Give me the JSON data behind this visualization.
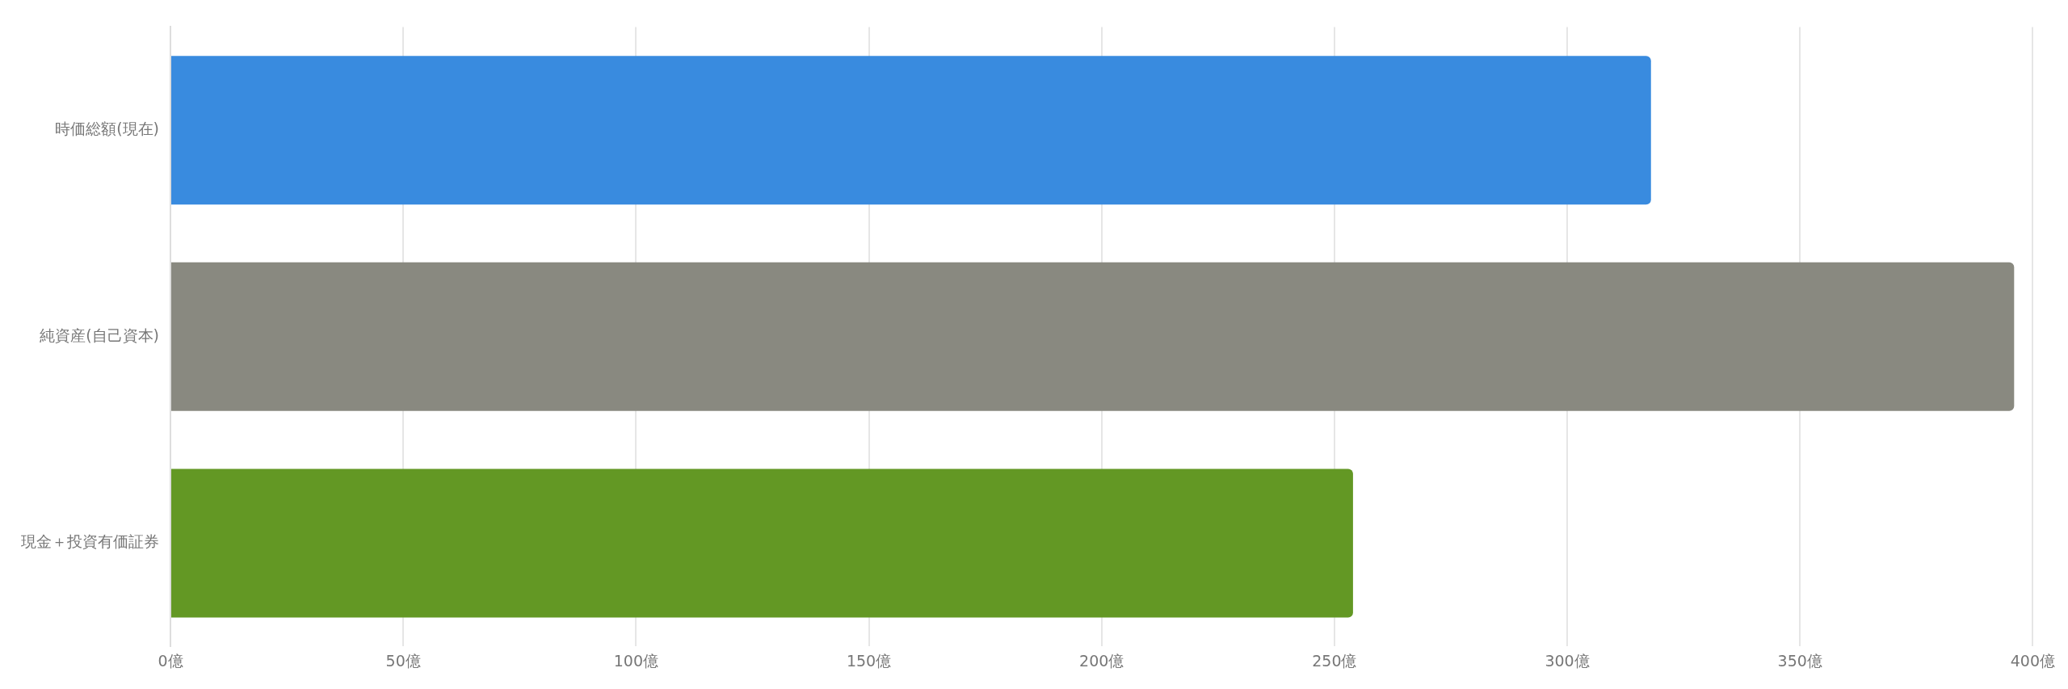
{
  "chart_data": {
    "type": "bar",
    "orientation": "horizontal",
    "categories": [
      "時価総額(現在)",
      "純資産(自己資本)",
      "現金＋投資有価証券"
    ],
    "values": [
      318,
      396,
      254
    ],
    "colors": [
      "#398bdf",
      "#898980",
      "#639824"
    ],
    "xlim": [
      0,
      400
    ],
    "xticks": [
      {
        "value": 0,
        "label": "0億"
      },
      {
        "value": 50,
        "label": "50億"
      },
      {
        "value": 100,
        "label": "100億"
      },
      {
        "value": 150,
        "label": "150億"
      },
      {
        "value": 200,
        "label": "200億"
      },
      {
        "value": 250,
        "label": "250億"
      },
      {
        "value": 300,
        "label": "300億"
      },
      {
        "value": 350,
        "label": "350億"
      },
      {
        "value": 400,
        "label": "400億"
      }
    ],
    "grid": "x",
    "legend": false
  }
}
